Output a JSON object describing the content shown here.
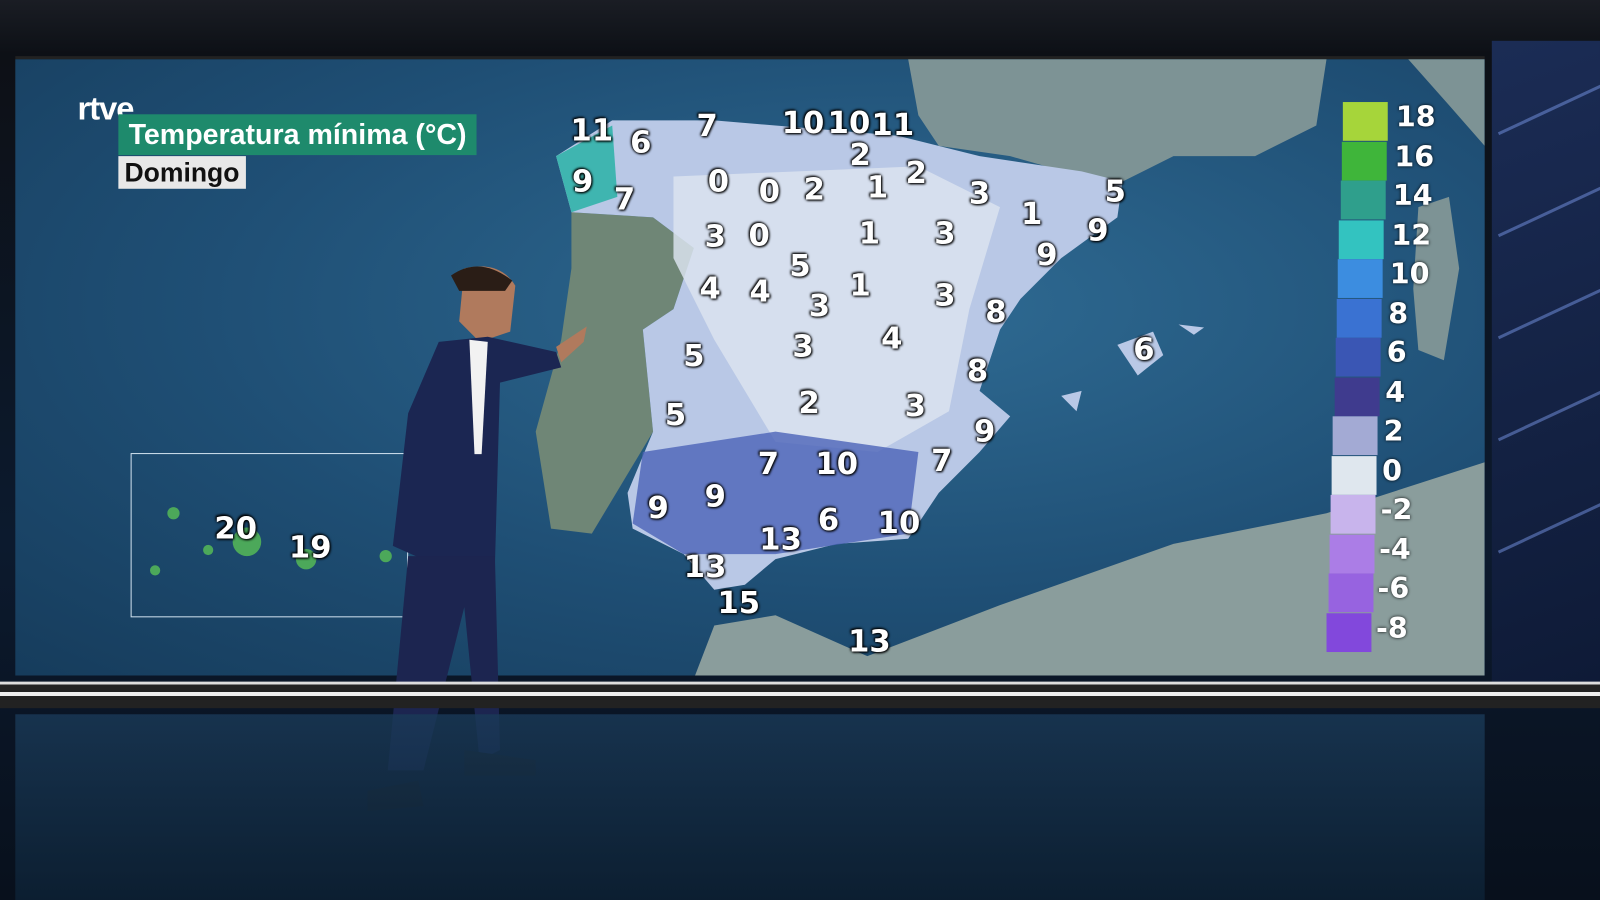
{
  "broadcaster": "rtve",
  "title": "Temperatura mínima (°C)",
  "day": "Domingo",
  "legend": {
    "labels": [
      "18",
      "16",
      "14",
      "12",
      "10",
      "8",
      "6",
      "4",
      "2",
      "0",
      "-2",
      "-4",
      "-6",
      "-8"
    ],
    "colors": [
      "#a6d53a",
      "#3fb53a",
      "#2f9f8c",
      "#33c3c0",
      "#3c8de0",
      "#3a72d2",
      "#3a56b4",
      "#3f3b8e",
      "#a3aad4",
      "#dfe7ee",
      "#c8b4ec",
      "#ab7de6",
      "#9763e0",
      "#8248dc"
    ]
  },
  "temperatures": [
    "11",
    "6",
    "7",
    "10",
    "10",
    "11",
    "2",
    "9",
    "7",
    "0",
    "0",
    "2",
    "1",
    "2",
    "3",
    "1",
    "5",
    "9",
    "3",
    "0",
    "1",
    "3",
    "9",
    "5",
    "4",
    "4",
    "1",
    "3",
    "3",
    "8",
    "4",
    "3",
    "6",
    "5",
    "8",
    "2",
    "3",
    "5",
    "9",
    "7",
    "10",
    "7",
    "9",
    "9",
    "6",
    "10",
    "13",
    "13",
    "15",
    "13"
  ],
  "canary_temperatures": [
    "20",
    "19"
  ],
  "colors": {
    "spain_fill": "#b9c8e6",
    "portugal_fill": "#6f8676",
    "sea": "#2a5f87",
    "title_bg": "#1e8a6c"
  }
}
